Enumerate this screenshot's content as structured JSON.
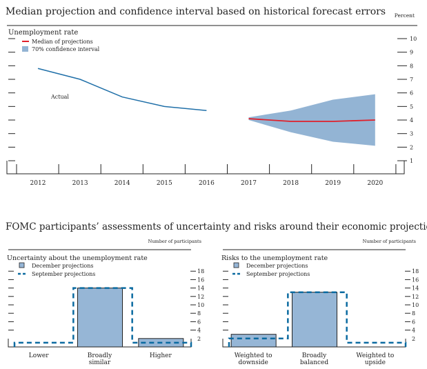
{
  "top": {
    "title": "Median projection and confidence interval based on historical forecast errors",
    "unit": "Percent"
  },
  "middle_title": "FOMC participants’ assessments of uncertainty and risks around their economic projections",
  "colors": {
    "actual": "#1f6fa8",
    "median": "#e0202a",
    "ci": "#93b4d4",
    "bar": "#96b6d6",
    "sept": "#0a6aa0"
  },
  "chart_data": [
    {
      "type": "line",
      "title": "Unemployment rate",
      "x_ticks": [
        "2012",
        "2013",
        "2014",
        "2015",
        "2016",
        "2017",
        "2018",
        "2019",
        "2020"
      ],
      "ylim": [
        0,
        10.5
      ],
      "y_ticks": [
        "1",
        "2",
        "3",
        "4",
        "5",
        "6",
        "7",
        "8",
        "9",
        "10"
      ],
      "annotation": "Actual",
      "legend": [
        "Median of projections",
        "70% confidence interval"
      ],
      "series": [
        {
          "name": "Actual",
          "x": [
            2012,
            2013,
            2014,
            2015,
            2016
          ],
          "y": [
            7.8,
            7.0,
            5.7,
            5.0,
            4.7
          ]
        },
        {
          "name": "Median of projections",
          "x": [
            2017,
            2018,
            2019,
            2020
          ],
          "y": [
            4.1,
            3.9,
            3.9,
            4.0
          ]
        }
      ],
      "band": {
        "name": "70% confidence interval",
        "x": [
          2017,
          2018,
          2019,
          2020
        ],
        "low": [
          4.0,
          3.1,
          2.4,
          2.1
        ],
        "high": [
          4.2,
          4.7,
          5.5,
          5.9
        ]
      }
    },
    {
      "type": "bar",
      "title": "Uncertainty about the unemployment rate",
      "ylabel": "Number of participants",
      "categories": [
        [
          "Lower"
        ],
        [
          "Broadly",
          "similar"
        ],
        [
          "Higher"
        ]
      ],
      "y_ticks": [
        "2",
        "4",
        "6",
        "8",
        "10",
        "12",
        "14",
        "16",
        "18"
      ],
      "ylim": [
        0,
        19
      ],
      "series": [
        {
          "name": "December projections",
          "values": [
            0,
            14,
            2
          ]
        },
        {
          "name": "September projections",
          "values": [
            1,
            14,
            1
          ]
        }
      ]
    },
    {
      "type": "bar",
      "title": "Risks to the unemployment rate",
      "ylabel": "Number of participants",
      "categories": [
        [
          "Weighted to",
          "downside"
        ],
        [
          "Broadly",
          "balanced"
        ],
        [
          "Weighted to",
          "upside"
        ]
      ],
      "y_ticks": [
        "2",
        "4",
        "6",
        "8",
        "10",
        "12",
        "14",
        "16",
        "18"
      ],
      "ylim": [
        0,
        19
      ],
      "series": [
        {
          "name": "December projections",
          "values": [
            3,
            13,
            0
          ]
        },
        {
          "name": "September projections",
          "values": [
            2,
            13,
            1
          ]
        }
      ]
    }
  ]
}
